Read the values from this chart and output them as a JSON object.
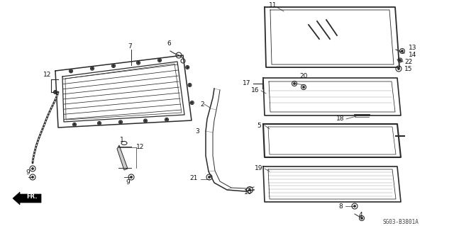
{
  "bg_color": "#ffffff",
  "catalog_number": "SG03-B3801A",
  "line_color": "#2a2a2a",
  "label_color": "#111111"
}
